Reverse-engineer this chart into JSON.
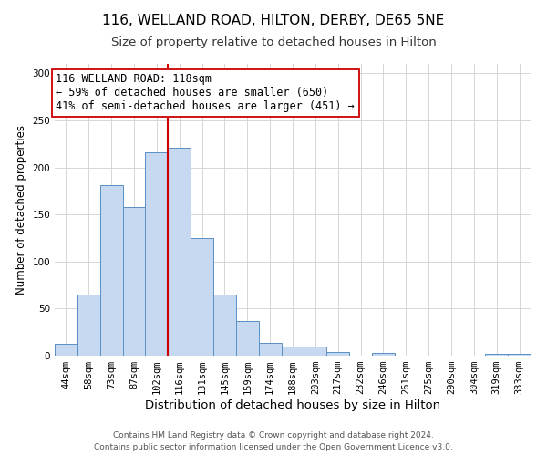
{
  "title": "116, WELLAND ROAD, HILTON, DERBY, DE65 5NE",
  "subtitle": "Size of property relative to detached houses in Hilton",
  "xlabel": "Distribution of detached houses by size in Hilton",
  "ylabel": "Number of detached properties",
  "bar_labels": [
    "44sqm",
    "58sqm",
    "73sqm",
    "87sqm",
    "102sqm",
    "116sqm",
    "131sqm",
    "145sqm",
    "159sqm",
    "174sqm",
    "188sqm",
    "203sqm",
    "217sqm",
    "232sqm",
    "246sqm",
    "261sqm",
    "275sqm",
    "290sqm",
    "304sqm",
    "319sqm",
    "333sqm"
  ],
  "bar_values": [
    13,
    65,
    181,
    158,
    216,
    221,
    125,
    65,
    37,
    14,
    10,
    10,
    4,
    0,
    3,
    0,
    0,
    0,
    0,
    2,
    2
  ],
  "bar_color": "#c6d9f0",
  "bar_edge_color": "#5a8fc3",
  "vline_x": 4.5,
  "vline_color": "#cc0000",
  "annotation_line1": "116 WELLAND ROAD: 118sqm",
  "annotation_line2": "← 59% of detached houses are smaller (650)",
  "annotation_line3": "41% of semi-detached houses are larger (451) →",
  "annotation_box_color": "#ffffff",
  "annotation_box_edge": "#cc0000",
  "ylim": [
    0,
    310
  ],
  "yticks": [
    0,
    50,
    100,
    150,
    200,
    250,
    300
  ],
  "footer1": "Contains HM Land Registry data © Crown copyright and database right 2024.",
  "footer2": "Contains public sector information licensed under the Open Government Licence v3.0.",
  "bg_color": "#ffffff",
  "grid_color": "#d0d0d0",
  "title_fontsize": 11,
  "subtitle_fontsize": 9.5,
  "xlabel_fontsize": 9.5,
  "ylabel_fontsize": 8.5,
  "tick_fontsize": 7.5,
  "annot_fontsize": 8.5,
  "footer_fontsize": 6.5
}
